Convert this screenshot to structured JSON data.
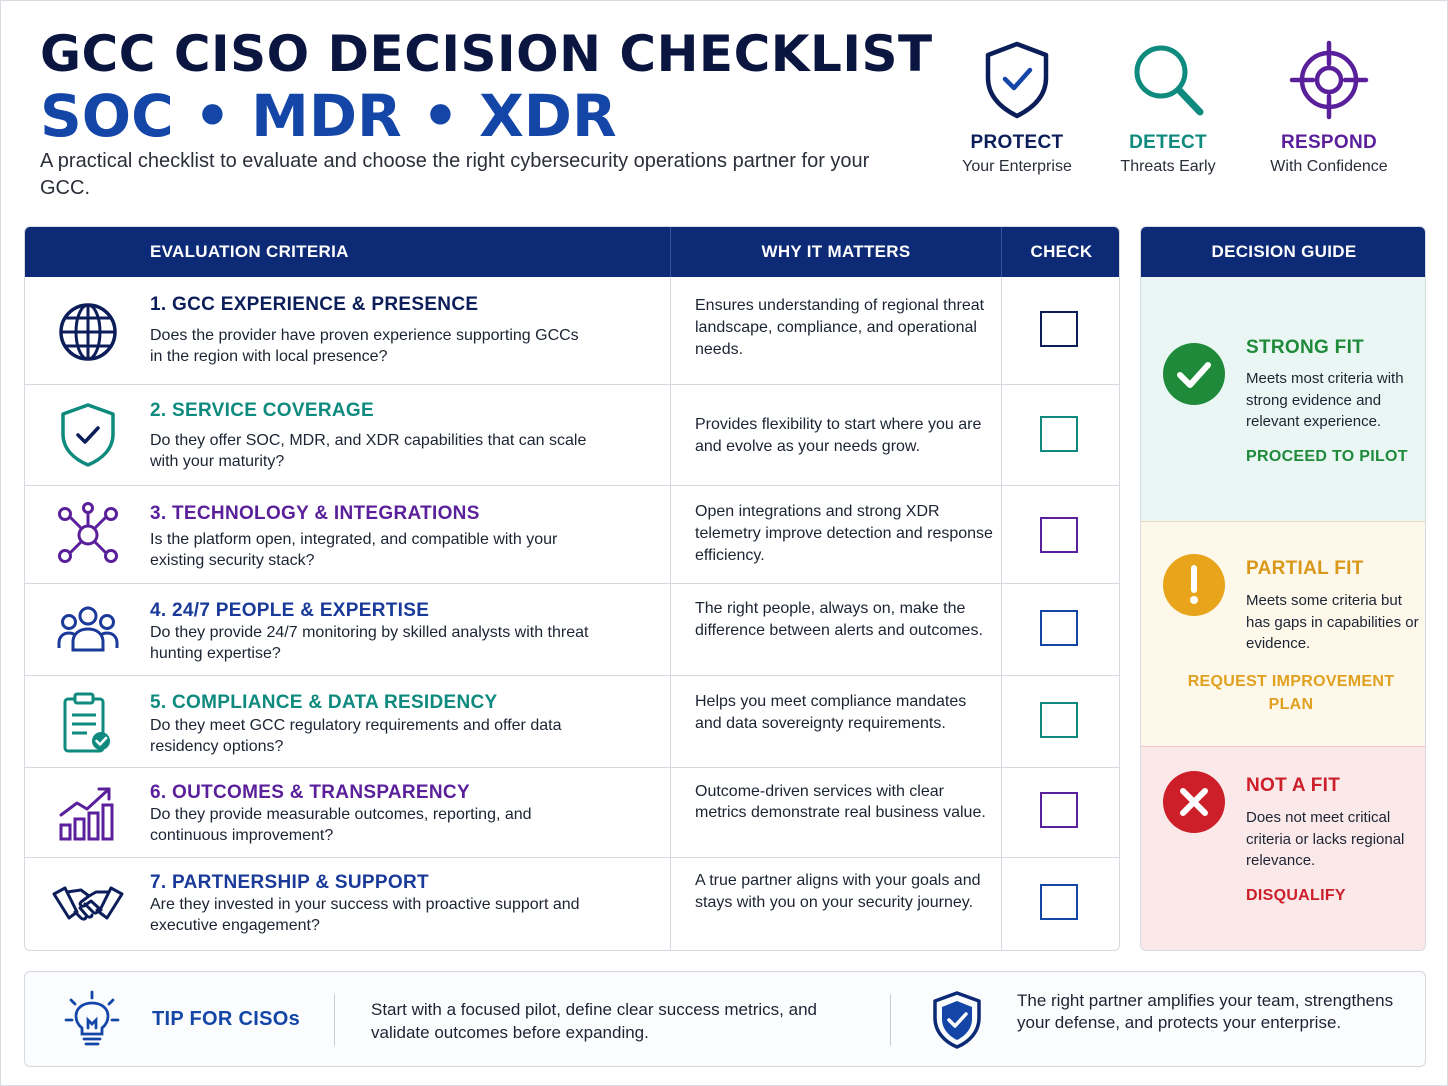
{
  "header": {
    "title": "GCC CISO DECISION CHECKLIST",
    "subtitle": "SOC • MDR • XDR",
    "description": "A practical checklist to evaluate and choose the right cybersecurity operations partner for your GCC."
  },
  "pillars": [
    {
      "title": "PROTECT",
      "subtitle": "Your Enterprise",
      "icon": "shield-check-icon",
      "color": "#0c1e5a"
    },
    {
      "title": "DETECT",
      "subtitle": "Threats Early",
      "icon": "magnifier-icon",
      "color": "#0f8a7e"
    },
    {
      "title": "RESPOND",
      "subtitle": "With Confidence",
      "icon": "crosshair-icon",
      "color": "#5a1f9a"
    }
  ],
  "table": {
    "headers": {
      "criteria": "EVALUATION CRITERIA",
      "why": "WHY IT MATTERS",
      "check": "CHECK"
    },
    "rows": [
      {
        "title": "1. GCC EXPERIENCE & PRESENCE",
        "desc": "Does the provider have proven experience supporting GCCs in the region with local presence?",
        "why": "Ensures understanding of regional threat landscape, compliance, and operational needs.",
        "icon": "globe-icon",
        "color": "#0c1e5a",
        "checked": false
      },
      {
        "title": "2. SERVICE COVERAGE",
        "desc": "Do they offer SOC, MDR, and XDR capabilities that can scale with your maturity?",
        "why": "Provides flexibility to start where you are and evolve as your needs grow.",
        "icon": "shield-check-icon",
        "color": "#0f8a7e",
        "checked": false
      },
      {
        "title": "3. TECHNOLOGY & INTEGRATIONS",
        "desc": "Is the platform open, integrated, and compatible with your existing security stack?",
        "why": "Open integrations and strong XDR telemetry improve detection and response efficiency.",
        "icon": "network-icon",
        "color": "#5a1f9a",
        "checked": false
      },
      {
        "title": "4. 24/7 PEOPLE & EXPERTISE",
        "desc": "Do they provide 24/7 monitoring by skilled analysts with threat hunting expertise?",
        "why": "The right people, always on, make the difference between alerts and outcomes.",
        "icon": "team-icon",
        "color": "#1a3a9a",
        "checked": false
      },
      {
        "title": "5. COMPLIANCE & DATA RESIDENCY",
        "desc": "Do they meet GCC regulatory requirements and offer data residency options?",
        "why": "Helps you meet compliance mandates and data sovereignty requirements.",
        "icon": "clipboard-check-icon",
        "color": "#0f8a7e",
        "checked": false
      },
      {
        "title": "6. OUTCOMES & TRANSPARENCY",
        "desc": "Do they provide measurable outcomes, reporting, and continuous improvement?",
        "why": "Outcome-driven services with clear metrics demonstrate real business value.",
        "icon": "growth-chart-icon",
        "color": "#5a1f9a",
        "checked": false
      },
      {
        "title": "7. PARTNERSHIP & SUPPORT",
        "desc": "Are they invested in your success with proactive support and executive engagement?",
        "why": "A true partner aligns with your goals and stays with you on your security journey.",
        "icon": "handshake-icon",
        "color": "#1a3a9a",
        "checked": false
      }
    ]
  },
  "guide": {
    "title": "DECISION GUIDE",
    "sections": [
      {
        "title": "STRONG FIT",
        "desc": "Meets most criteria with strong evidence and relevant experience.",
        "action": "PROCEED TO PILOT",
        "color": "#1f8a3a",
        "bg": "#eaf6f4",
        "icon": "check-circle-icon"
      },
      {
        "title": "PARTIAL FIT",
        "desc": "Meets some criteria but has gaps in capabilities or evidence.",
        "action": "REQUEST IMPROVEMENT PLAN",
        "color": "#e0a020",
        "bg": "#fdf8ea",
        "icon": "exclamation-circle-icon"
      },
      {
        "title": "NOT A FIT",
        "desc": "Does not meet critical criteria or lacks regional relevance.",
        "action": "DISQUALIFY",
        "color": "#cc1f2a",
        "bg": "#fbe9ea",
        "icon": "x-circle-icon"
      }
    ]
  },
  "tip": {
    "title": "TIP FOR CISOs",
    "text": "Start with a focused pilot, define clear success metrics, and validate outcomes before expanding.",
    "closing": "The right partner amplifies your team, strengthens your defense, and protects your enterprise.",
    "icons": [
      "lightbulb-icon",
      "shield-check-icon"
    ]
  }
}
